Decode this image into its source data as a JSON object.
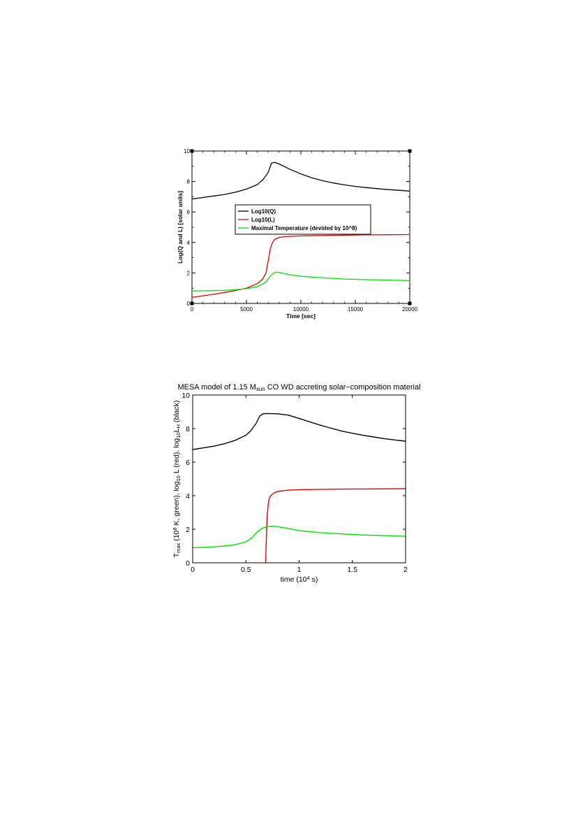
{
  "chart_data": [
    {
      "type": "line",
      "title": "",
      "xlabel": "Time [sec]",
      "ylabel": "Log(Q and L) [solar units]",
      "xlim": [
        0,
        20000
      ],
      "ylim": [
        0,
        10
      ],
      "xticks": [
        {
          "value": 0,
          "label": "0"
        },
        {
          "value": 5000,
          "label": "5000"
        },
        {
          "value": 10000,
          "label": "10000"
        },
        {
          "value": 15000,
          "label": "15000"
        },
        {
          "value": 20000,
          "label": "20000"
        }
      ],
      "yticks": [
        {
          "value": 0,
          "label": "0"
        },
        {
          "value": 2,
          "label": "2"
        },
        {
          "value": 4,
          "label": "4"
        },
        {
          "value": 6,
          "label": "6"
        },
        {
          "value": 8,
          "label": "8"
        },
        {
          "value": 10,
          "label": "10"
        }
      ],
      "grid": false,
      "legend": "upper-middle",
      "series": [
        {
          "name": "Log10(Q)",
          "color": "#000000",
          "x": [
            0,
            1000,
            2000,
            3000,
            4000,
            5000,
            6000,
            6500,
            7000,
            7300,
            7600,
            8000,
            9000,
            10000,
            11000,
            12000,
            13000,
            14000,
            15000,
            16000,
            17000,
            18000,
            19000,
            20000
          ],
          "y": [
            6.85,
            6.95,
            7.05,
            7.15,
            7.3,
            7.5,
            7.8,
            8.1,
            8.6,
            9.2,
            9.25,
            9.15,
            8.8,
            8.5,
            8.25,
            8.05,
            7.9,
            7.78,
            7.68,
            7.6,
            7.53,
            7.47,
            7.42,
            7.37
          ]
        },
        {
          "name": "Log10(L)",
          "color": "#e00000",
          "x": [
            0,
            1000,
            2000,
            3000,
            4000,
            5000,
            6000,
            6500,
            6800,
            7000,
            7200,
            7400,
            7600,
            8000,
            8500,
            9000,
            10000,
            12000,
            14000,
            16000,
            18000,
            20000
          ],
          "y": [
            0.4,
            0.5,
            0.6,
            0.72,
            0.85,
            1.0,
            1.3,
            1.6,
            2.0,
            2.8,
            3.6,
            4.0,
            4.2,
            4.33,
            4.38,
            4.4,
            4.43,
            4.46,
            4.48,
            4.5,
            4.51,
            4.52
          ]
        },
        {
          "name": "Maximal Temperature (devided by 10^8)",
          "color": "#00e000",
          "x": [
            0,
            1000,
            2000,
            3000,
            4000,
            5000,
            6000,
            6800,
            7200,
            7500,
            7800,
            8200,
            9000,
            10000,
            12000,
            14000,
            16000,
            18000,
            20000
          ],
          "y": [
            0.82,
            0.83,
            0.84,
            0.86,
            0.9,
            0.97,
            1.1,
            1.4,
            1.8,
            2.0,
            2.05,
            2.0,
            1.88,
            1.78,
            1.68,
            1.6,
            1.56,
            1.53,
            1.5
          ]
        }
      ]
    },
    {
      "type": "line",
      "title_parts": [
        "MESA model of 1.15 M",
        "sun",
        " CO WD accreting solar−composition material"
      ],
      "xlabel_parts": [
        "time (10",
        "4",
        " s)"
      ],
      "ylabel_parts": [
        "T",
        "max",
        " (10",
        "8",
        " K, green), log",
        "10",
        " L (red), log",
        "10",
        "L",
        "H",
        " (black)"
      ],
      "xlim": [
        0,
        2
      ],
      "ylim": [
        0,
        10
      ],
      "xticks": [
        {
          "value": 0,
          "label": "0"
        },
        {
          "value": 0.5,
          "label": "0.5"
        },
        {
          "value": 1,
          "label": "1"
        },
        {
          "value": 1.5,
          "label": "1.5"
        },
        {
          "value": 2,
          "label": "2"
        }
      ],
      "yticks": [
        {
          "value": 0,
          "label": "0"
        },
        {
          "value": 2,
          "label": "2"
        },
        {
          "value": 4,
          "label": "4"
        },
        {
          "value": 6,
          "label": "6"
        },
        {
          "value": 8,
          "label": "8"
        },
        {
          "value": 10,
          "label": "10"
        }
      ],
      "grid": false,
      "series": [
        {
          "color": "#000000",
          "x": [
            0,
            0.1,
            0.2,
            0.3,
            0.4,
            0.5,
            0.55,
            0.6,
            0.63,
            0.66,
            0.7,
            0.8,
            0.9,
            1.0,
            1.1,
            1.2,
            1.3,
            1.4,
            1.5,
            1.6,
            1.7,
            1.8,
            1.9,
            2.0
          ],
          "y": [
            6.75,
            6.85,
            6.95,
            7.1,
            7.3,
            7.6,
            7.9,
            8.35,
            8.75,
            8.88,
            8.9,
            8.88,
            8.8,
            8.6,
            8.4,
            8.2,
            8.02,
            7.85,
            7.72,
            7.6,
            7.5,
            7.4,
            7.32,
            7.25
          ]
        },
        {
          "color": "#e00000",
          "x": [
            0.685,
            0.69,
            0.695,
            0.7,
            0.71,
            0.72,
            0.74,
            0.77,
            0.8,
            0.85,
            0.9,
            1.0,
            1.2,
            1.4,
            1.6,
            1.8,
            2.0
          ],
          "y": [
            0,
            1.0,
            2.0,
            2.8,
            3.5,
            3.85,
            4.05,
            4.18,
            4.25,
            4.3,
            4.33,
            4.36,
            4.38,
            4.39,
            4.4,
            4.41,
            4.42
          ]
        },
        {
          "color": "#00e000",
          "x": [
            0,
            0.1,
            0.2,
            0.3,
            0.4,
            0.5,
            0.55,
            0.6,
            0.65,
            0.7,
            0.75,
            0.8,
            0.9,
            1.0,
            1.2,
            1.4,
            1.6,
            1.8,
            2.0
          ],
          "y": [
            0.9,
            0.92,
            0.95,
            1.0,
            1.08,
            1.25,
            1.45,
            1.8,
            2.05,
            2.15,
            2.18,
            2.15,
            2.05,
            1.92,
            1.8,
            1.72,
            1.66,
            1.62,
            1.58
          ]
        }
      ]
    }
  ]
}
